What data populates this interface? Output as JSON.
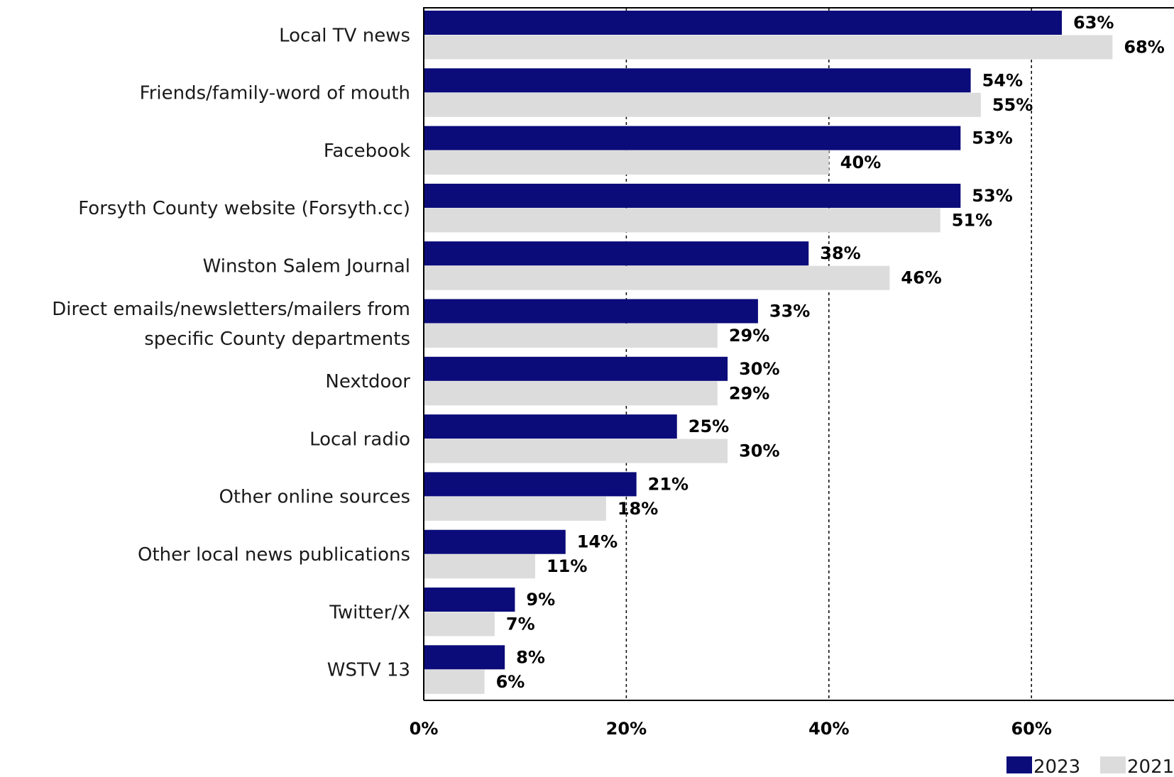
{
  "chart_data": {
    "type": "bar",
    "orientation": "horizontal",
    "categories": [
      [
        "Local TV news"
      ],
      [
        "Friends/family-word of mouth"
      ],
      [
        "Facebook"
      ],
      [
        "Forsyth County website (Forsyth.cc)"
      ],
      [
        "Winston Salem Journal"
      ],
      [
        "Direct emails/newsletters/mailers from",
        "specific County departments"
      ],
      [
        "Nextdoor"
      ],
      [
        "Local radio"
      ],
      [
        "Other online sources"
      ],
      [
        "Other local news publications"
      ],
      [
        "Twitter/X"
      ],
      [
        "WSTV 13"
      ]
    ],
    "series": [
      {
        "name": "2023",
        "color": "#0b0b7a",
        "values": [
          63,
          54,
          53,
          53,
          38,
          33,
          30,
          25,
          21,
          14,
          9,
          8
        ],
        "labels": [
          "63%",
          "54%",
          "53%",
          "53%",
          "38%",
          "33%",
          "30%",
          "25%",
          "21%",
          "14%",
          "9%",
          "8%"
        ]
      },
      {
        "name": "2021",
        "color": "#dcdcdc",
        "values": [
          68,
          55,
          40,
          51,
          46,
          29,
          29,
          30,
          18,
          11,
          7,
          6
        ],
        "labels": [
          "68%",
          "55%",
          "40%",
          "51%",
          "46%",
          "29%",
          "29%",
          "30%",
          "18%",
          "11%",
          "7%",
          "6%"
        ]
      }
    ],
    "xlim": [
      0,
      70
    ],
    "xticks": [
      0,
      20,
      40,
      60
    ],
    "xtick_labels": [
      "0%",
      "20%",
      "40%",
      "60%"
    ],
    "grid": "vertical dashed",
    "legend_position": "bottom-right"
  }
}
